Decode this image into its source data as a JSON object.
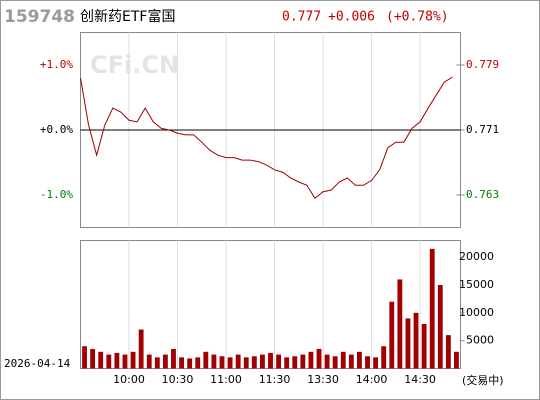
{
  "header": {
    "code": "159748",
    "name": "创新药ETF富国",
    "price": 0.777,
    "change": "+0.006",
    "change_pct": "(+0.78%)"
  },
  "chart_data": {
    "type": "line",
    "watermark": "CFi.CN",
    "categories": [
      null,
      null,
      null,
      null,
      null,
      null,
      "10:00",
      null,
      null,
      null,
      null,
      null,
      "10:30",
      null,
      null,
      null,
      null,
      null,
      "11:00",
      null,
      null,
      null,
      null,
      null,
      "11:30",
      null,
      null,
      null,
      null,
      null,
      "13:30",
      null,
      null,
      null,
      null,
      null,
      "14:00",
      null,
      null,
      null,
      null,
      null,
      "14:30",
      null,
      null,
      null,
      null
    ],
    "ylim": [
      -1.5,
      1.5
    ],
    "yticks": [
      {
        "value": 1,
        "label": "+1.0%"
      },
      {
        "value": 0,
        "label": "+0.0%"
      },
      {
        "value": -1,
        "label": "-1.0%"
      }
    ],
    "y2lim": [
      0.759,
      0.783
    ],
    "y2ticks": [
      0.779,
      0.771,
      0.763
    ],
    "series": [
      {
        "axis": "y2",
        "color": "#a00000",
        "values": [
          0.7774,
          0.7716,
          0.7679,
          0.7716,
          0.7737,
          0.7732,
          0.7722,
          0.772,
          0.7737,
          0.772,
          0.7712,
          0.771,
          0.7706,
          0.7704,
          0.7704,
          0.7695,
          0.7685,
          0.7679,
          0.7676,
          0.7676,
          0.7673,
          0.7673,
          0.7671,
          0.7667,
          0.7661,
          0.7658,
          0.7651,
          0.7646,
          0.7642,
          0.7626,
          0.7634,
          0.7636,
          0.7646,
          0.7651,
          0.7642,
          0.7642,
          0.7648,
          0.7661,
          0.7688,
          0.7695,
          0.7695,
          0.7712,
          0.772,
          0.7737,
          0.7753,
          0.7769,
          0.7775
        ]
      }
    ],
    "volume": {
      "type": "bar",
      "color": "#a00000",
      "ylim": [
        0,
        23000
      ],
      "yticks": [
        20000,
        15000,
        10000,
        5000
      ],
      "values": [
        4000,
        3500,
        3000,
        2500,
        2800,
        2500,
        3000,
        7000,
        2500,
        2000,
        2500,
        3500,
        2000,
        1800,
        2000,
        3000,
        2500,
        2200,
        2000,
        2500,
        2000,
        2200,
        2500,
        2800,
        2500,
        2000,
        2200,
        2500,
        3000,
        3500,
        2500,
        2200,
        3000,
        2500,
        3000,
        2200,
        2000,
        4000,
        12000,
        16000,
        9000,
        10000,
        8000,
        21500,
        15000,
        6000,
        3000
      ]
    }
  },
  "footer": {
    "date": "2026-04-14",
    "status": "(交易中)"
  }
}
